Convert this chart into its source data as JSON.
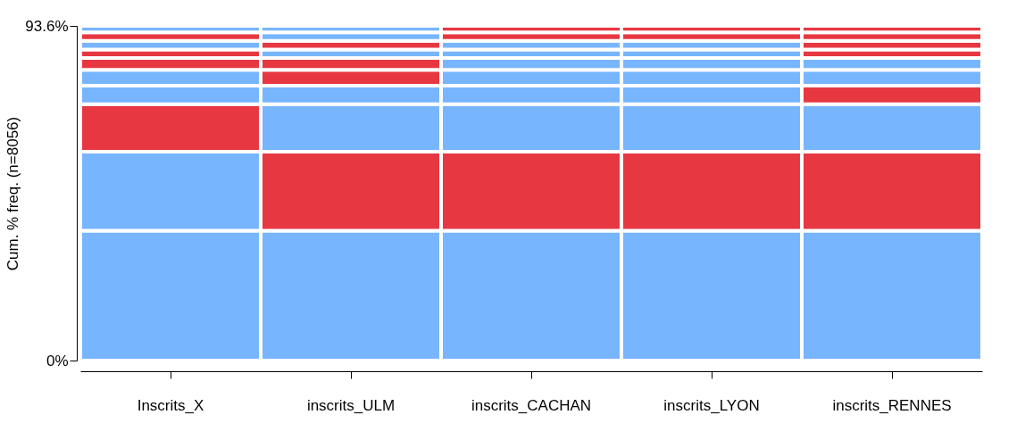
{
  "chart_data": {
    "type": "bar",
    "stacked": true,
    "ylabel": "Cum. % freq. (n=8056)",
    "categories": [
      "Inscrits_X",
      "inscrits_ULM",
      "inscrits_CACHAN",
      "inscrits_LYON",
      "inscrits_RENNES"
    ],
    "series": [
      {
        "values": [
          36.3,
          36.3,
          36.3,
          36.3,
          36.3
        ],
        "colors": [
          "#77b5fe",
          "#77b5fe",
          "#77b5fe",
          "#77b5fe",
          "#77b5fe"
        ]
      },
      {
        "values": [
          22.1,
          22.1,
          22.1,
          22.1,
          22.1
        ],
        "colors": [
          "#77b5fe",
          "#e73842",
          "#e73842",
          "#e73842",
          "#e73842"
        ]
      },
      {
        "values": [
          13.3,
          13.3,
          13.3,
          13.3,
          13.3
        ],
        "colors": [
          "#e73842",
          "#77b5fe",
          "#77b5fe",
          "#77b5fe",
          "#77b5fe"
        ]
      },
      {
        "values": [
          5.2,
          5.2,
          5.2,
          5.2,
          5.2
        ],
        "colors": [
          "#77b5fe",
          "#77b5fe",
          "#77b5fe",
          "#77b5fe",
          "#e73842"
        ]
      },
      {
        "values": [
          4.4,
          4.4,
          4.4,
          4.4,
          4.4
        ],
        "colors": [
          "#77b5fe",
          "#e73842",
          "#77b5fe",
          "#77b5fe",
          "#77b5fe"
        ]
      },
      {
        "values": [
          3.3,
          3.3,
          3.3,
          3.3,
          3.3
        ],
        "colors": [
          "#e73842",
          "#e73842",
          "#77b5fe",
          "#77b5fe",
          "#77b5fe"
        ]
      },
      {
        "values": [
          2.4,
          2.4,
          2.4,
          2.4,
          2.4
        ],
        "colors": [
          "#e73842",
          "#77b5fe",
          "#77b5fe",
          "#77b5fe",
          "#e73842"
        ]
      },
      {
        "values": [
          2.4,
          2.4,
          2.4,
          2.4,
          2.4
        ],
        "colors": [
          "#77b5fe",
          "#e73842",
          "#77b5fe",
          "#77b5fe",
          "#e73842"
        ]
      },
      {
        "values": [
          2.4,
          2.4,
          2.4,
          2.4,
          2.4
        ],
        "colors": [
          "#e73842",
          "#77b5fe",
          "#e73842",
          "#e73842",
          "#e73842"
        ]
      },
      {
        "values": [
          1.8,
          1.8,
          1.8,
          1.8,
          1.8
        ],
        "colors": [
          "#77b5fe",
          "#77b5fe",
          "#e73842",
          "#e73842",
          "#e73842"
        ]
      }
    ],
    "ylim": [
      0,
      93.6
    ],
    "yticks": [
      {
        "value": 0,
        "label": "0%"
      },
      {
        "value": 93.6,
        "label": "93.6%"
      }
    ],
    "grid": false
  }
}
